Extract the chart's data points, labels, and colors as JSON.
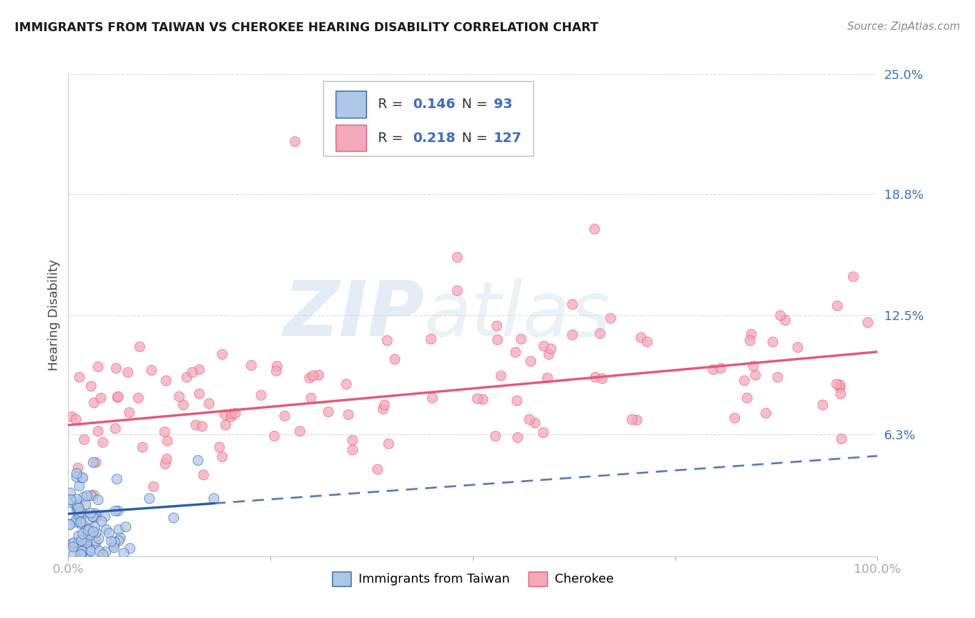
{
  "title": "IMMIGRANTS FROM TAIWAN VS CHEROKEE HEARING DISABILITY CORRELATION CHART",
  "source": "Source: ZipAtlas.com",
  "ylabel": "Hearing Disability",
  "xlim": [
    0,
    1.0
  ],
  "ylim": [
    0,
    0.25
  ],
  "ytick_positions": [
    0.0,
    0.063,
    0.125,
    0.188,
    0.25
  ],
  "yticklabels": [
    "",
    "6.3%",
    "12.5%",
    "18.8%",
    "25.0%"
  ],
  "taiwan_R": 0.146,
  "taiwan_N": 93,
  "cherokee_R": 0.218,
  "cherokee_N": 127,
  "taiwan_color": "#aec6e8",
  "cherokee_color": "#f4a9b8",
  "taiwan_line_color": "#2b5ea7",
  "cherokee_line_color": "#e8567a",
  "watermark_zip": "ZIP",
  "watermark_atlas": "atlas",
  "background_color": "#ffffff",
  "grid_color": "#d0d0d0"
}
